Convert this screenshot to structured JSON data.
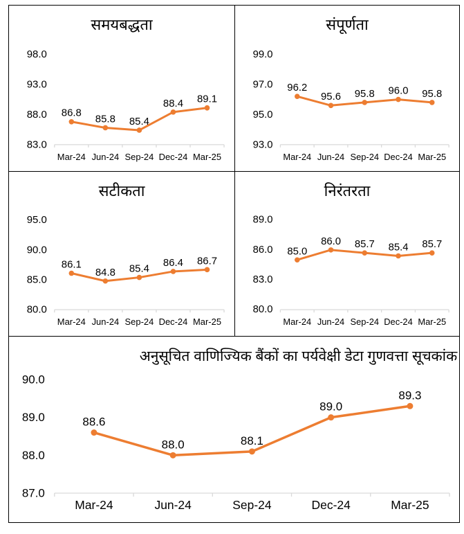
{
  "style": {
    "accent_color": "#ED7D31",
    "axis_line_color": "#D9D9D9",
    "text_color": "#000000",
    "border_color": "#000000",
    "background": "#ffffff"
  },
  "chart_data": [
    {
      "id": "timeliness",
      "type": "line",
      "title": "समयबद्धता",
      "categories": [
        "Mar-24",
        "Jun-24",
        "Sep-24",
        "Dec-24",
        "Mar-25"
      ],
      "values": [
        86.8,
        85.8,
        85.4,
        88.4,
        89.1
      ],
      "data_labels": [
        "86.8",
        "85.8",
        "85.4",
        "88.4",
        "89.1"
      ],
      "ylim": [
        83,
        98
      ],
      "yticks": [
        83,
        88,
        93,
        98
      ],
      "ytick_labels": [
        "83.0",
        "88.0",
        "93.0",
        "98.0"
      ],
      "grid": false,
      "legend": false
    },
    {
      "id": "completeness",
      "type": "line",
      "title": "संपूर्णता",
      "categories": [
        "Mar-24",
        "Jun-24",
        "Sep-24",
        "Dec-24",
        "Mar-25"
      ],
      "values": [
        96.2,
        95.6,
        95.8,
        96.0,
        95.8
      ],
      "data_labels": [
        "96.2",
        "95.6",
        "95.8",
        "96.0",
        "95.8"
      ],
      "ylim": [
        93,
        99
      ],
      "yticks": [
        93,
        95,
        97,
        99
      ],
      "ytick_labels": [
        "93.0",
        "95.0",
        "97.0",
        "99.0"
      ],
      "grid": false,
      "legend": false
    },
    {
      "id": "accuracy",
      "type": "line",
      "title": "सटीकता",
      "categories": [
        "Mar-24",
        "Jun-24",
        "Sep-24",
        "Dec-24",
        "Mar-25"
      ],
      "values": [
        86.1,
        84.8,
        85.4,
        86.4,
        86.7
      ],
      "data_labels": [
        "86.1",
        "84.8",
        "85.4",
        "86.4",
        "86.7"
      ],
      "ylim": [
        80,
        95
      ],
      "yticks": [
        80,
        85,
        90,
        95
      ],
      "ytick_labels": [
        "80.0",
        "85.0",
        "90.0",
        "95.0"
      ],
      "grid": false,
      "legend": false
    },
    {
      "id": "consistency",
      "type": "line",
      "title": "निरंतरता",
      "categories": [
        "Mar-24",
        "Jun-24",
        "Sep-24",
        "Dec-24",
        "Mar-25"
      ],
      "values": [
        85.0,
        86.0,
        85.7,
        85.4,
        85.7
      ],
      "data_labels": [
        "85.0",
        "86.0",
        "85.7",
        "85.4",
        "85.7"
      ],
      "ylim": [
        80,
        89
      ],
      "yticks": [
        80,
        83,
        86,
        89
      ],
      "ytick_labels": [
        "80.0",
        "83.0",
        "86.0",
        "89.0"
      ],
      "grid": false,
      "legend": false
    },
    {
      "id": "sdqi-overall",
      "type": "line",
      "title": "अनुसूचित वाणिज्यिक बैंकों का पर्यवेक्षी डेटा गुणवत्ता सूचकांक",
      "categories": [
        "Mar-24",
        "Jun-24",
        "Sep-24",
        "Dec-24",
        "Mar-25"
      ],
      "values": [
        88.6,
        88.0,
        88.1,
        89.0,
        89.3
      ],
      "data_labels": [
        "88.6",
        "88.0",
        "88.1",
        "89.0",
        "89.3"
      ],
      "ylim": [
        87,
        90
      ],
      "yticks": [
        87,
        88,
        89,
        90
      ],
      "ytick_labels": [
        "87.0",
        "88.0",
        "89.0",
        "90.0"
      ],
      "grid": false,
      "legend": false
    }
  ]
}
